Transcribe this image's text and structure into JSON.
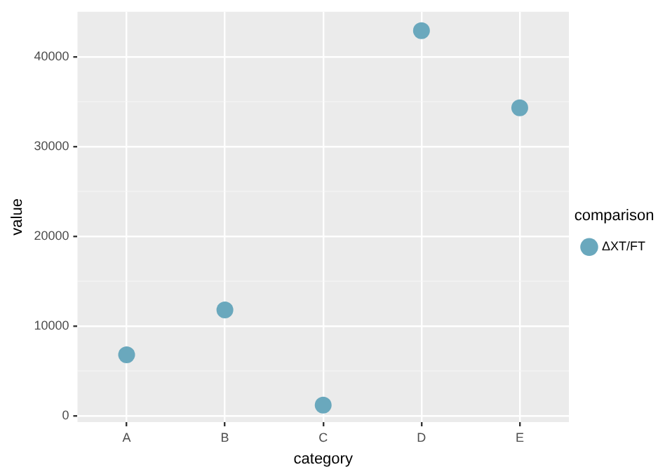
{
  "chart_data": {
    "type": "scatter",
    "xlabel": "category",
    "ylabel": "value",
    "legend_title": "comparison",
    "categories": [
      "A",
      "B",
      "C",
      "D",
      "E"
    ],
    "series": [
      {
        "name": "ΔXT/FT",
        "color": "#6aa8bd",
        "values": [
          6800,
          11800,
          1200,
          42900,
          34300
        ]
      }
    ],
    "ylim": [
      -700,
      45000
    ],
    "yticks": [
      0,
      {
        "value": 5000,
        "label": null
      },
      10000,
      {
        "value": 15000,
        "label": null
      },
      20000,
      {
        "value": 25000,
        "label": null
      },
      30000,
      {
        "value": 35000,
        "label": null
      },
      40000
    ],
    "grid": true,
    "legend": "right",
    "marker": "circle"
  }
}
